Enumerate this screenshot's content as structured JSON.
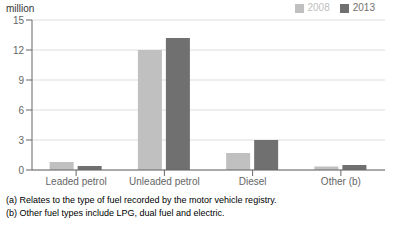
{
  "chart_data": {
    "type": "bar",
    "ylabel": "million",
    "categories": [
      "Leaded petrol",
      "Unleaded petrol",
      "Diesel",
      "Other (b)"
    ],
    "series": [
      {
        "name": "2008",
        "color": "#c0c0c0",
        "values": [
          0.8,
          12.0,
          1.7,
          0.35
        ]
      },
      {
        "name": "2013",
        "color": "#707070",
        "values": [
          0.4,
          13.2,
          3.0,
          0.5
        ]
      }
    ],
    "ylim": [
      0,
      15
    ],
    "yticks": [
      0,
      3,
      6,
      9,
      12,
      15
    ],
    "grid": true,
    "legend": "upper right",
    "annotations": [
      "(a) Relates to the type of fuel recorded by the motor vehicle registry.",
      "(b) Other fuel types include LPG, dual fuel and electric."
    ]
  }
}
